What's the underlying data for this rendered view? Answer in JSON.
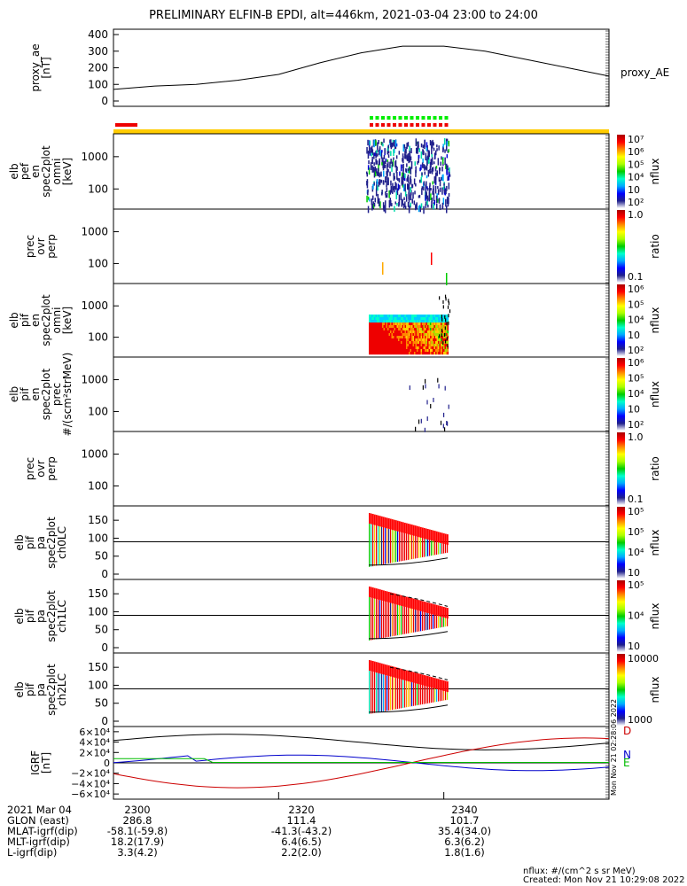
{
  "title": "PRELIMINARY ELFIN-B EPDI, alt=446km, 2021-03-04 23:00 to 24:00",
  "colors": {
    "ink": "#000000",
    "orange": "#ffcc00",
    "red": "#ee0000",
    "green": "#00ee00",
    "blue": "#0000cc",
    "darkblue": "#20208c"
  },
  "chart_data": {
    "type": "multi-panel",
    "time_range": [
      "2021-03-04 23:00",
      "2021-03-04 24:00"
    ],
    "panels": [
      {
        "name": "proxy_ae",
        "ylabel": [
          "proxy_ae",
          "[nT]"
        ],
        "yticks": [
          "400",
          "300",
          "200",
          "100",
          "0"
        ],
        "ylim": [
          0,
          400
        ],
        "legend": "proxy_AE",
        "series": {
          "t": [
            0,
            5,
            10,
            15,
            20,
            25,
            30,
            35,
            40,
            45,
            50,
            55,
            60
          ],
          "v": [
            70,
            90,
            100,
            125,
            160,
            230,
            290,
            330,
            330,
            300,
            250,
            200,
            150
          ]
        }
      },
      {
        "name": "elb_pef_en_spec2plot_omni",
        "ylabel": [
          "elb",
          "pef",
          "en",
          "spec2plot",
          "omni",
          "[keV]"
        ],
        "yticks": [
          "1000",
          "100"
        ],
        "colorbar": {
          "label": "nflux",
          "ticks": [
            "10⁷",
            "10⁶",
            "10⁵",
            "10⁴",
            "10⁳",
            "10²"
          ]
        }
      },
      {
        "name": "prec_ovr_perp_1",
        "ylabel": [
          "prec",
          "ovr",
          "perp"
        ],
        "yticks": [
          "1000",
          "100"
        ],
        "colorbar": {
          "label": "ratio",
          "ticks": [
            "1.0",
            "0.1"
          ]
        }
      },
      {
        "name": "elb_pif_en_spec2plot_omni",
        "ylabel": [
          "elb",
          "pif",
          "en",
          "spec2plot",
          "omni",
          "[keV]"
        ],
        "yticks": [
          "1000",
          "100"
        ],
        "colorbar": {
          "label": "nflux",
          "ticks": [
            "10⁶",
            "10⁵",
            "10⁴",
            "10⁳",
            "10²"
          ]
        }
      },
      {
        "name": "elb_pif_en_spec2plot_prec",
        "ylabel": [
          "elb",
          "pif",
          "en",
          "spec2plot",
          "prec",
          "#/(scm²strMeV)"
        ],
        "yticks": [
          "1000",
          "100"
        ],
        "colorbar": {
          "label": "nflux",
          "ticks": [
            "10⁶",
            "10⁵",
            "10⁴",
            "10⁳",
            "10²"
          ]
        }
      },
      {
        "name": "prec_ovr_perp_2",
        "ylabel": [
          "prec",
          "ovr",
          "perp"
        ],
        "yticks": [
          "1000",
          "100"
        ],
        "colorbar": {
          "label": "ratio",
          "ticks": [
            "1.0",
            "0.1"
          ]
        }
      },
      {
        "name": "elb_pif_pa_spec2plot_ch0LC",
        "ylabel": [
          "elb",
          "pif",
          "pa",
          "spec2plot",
          "ch0LC"
        ],
        "yticks": [
          "150",
          "100",
          "50",
          "0"
        ],
        "colorbar": {
          "label": "nflux",
          "ticks": [
            "10⁵",
            "10⁵",
            "10⁴",
            "10⁳"
          ]
        }
      },
      {
        "name": "elb_pif_pa_spec2plot_ch1LC",
        "ylabel": [
          "elb",
          "pif",
          "pa",
          "spec2plot",
          "ch1LC"
        ],
        "yticks": [
          "150",
          "100",
          "50",
          "0"
        ],
        "colorbar": {
          "label": "nflux",
          "ticks": [
            "10⁵",
            "10⁴",
            "10⁳"
          ]
        }
      },
      {
        "name": "elb_pif_pa_spec2plot_ch2LC",
        "ylabel": [
          "elb",
          "pif",
          "pa",
          "spec2plot",
          "ch2LC"
        ],
        "yticks": [
          "150",
          "100",
          "50",
          "0"
        ],
        "colorbar": {
          "label": "nflux",
          "ticks": [
            "10000",
            "1000"
          ]
        }
      },
      {
        "name": "IGRF",
        "ylabel": [
          "IGRF",
          "[nT]"
        ],
        "yticks": [
          "6×10⁴",
          "4×10⁴",
          "2×10⁴",
          "0",
          "−2×10⁴",
          "−4×10⁴",
          "−6×10⁴"
        ],
        "ylim": [
          -60000,
          60000
        ],
        "legend": [
          "D",
          "N",
          "E"
        ],
        "stamp": "Mon Nov 21 02:28:06 2022"
      }
    ]
  },
  "footer": {
    "rows": [
      [
        "2021 Mar 04",
        "2300",
        "2320",
        "2340"
      ],
      [
        "GLON (east)",
        "286.8",
        "111.4",
        "101.7"
      ],
      [
        "MLAT-igrf(dip)",
        "-58.1(-59.8)",
        "-41.3(-43.2)",
        "35.4(34.0)"
      ],
      [
        "MLT-igrf(dip)",
        "18.2(17.9)",
        "6.4(6.5)",
        "6.3(6.2)"
      ],
      [
        "L-igrf(dip)",
        "3.3(4.2)",
        "2.2(2.0)",
        "1.8(1.6)"
      ]
    ],
    "note1": "nflux: #/(cm^2 s sr MeV)",
    "note2": "Created: Mon Nov 21 10:29:08 2022"
  }
}
